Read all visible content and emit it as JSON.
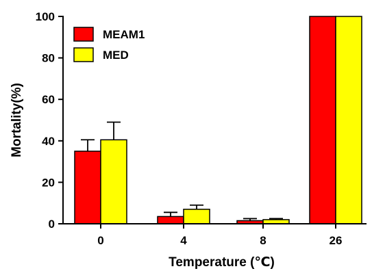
{
  "chart_data": {
    "type": "bar",
    "title": "",
    "xlabel": "Temperature (℃)",
    "ylabel": "Mortality(%)",
    "ylim": [
      0,
      100
    ],
    "yticks": [
      "0",
      "20",
      "40",
      "60",
      "80",
      "100"
    ],
    "categories": [
      "0",
      "4",
      "8",
      "26"
    ],
    "series": [
      {
        "name": "MEAM1",
        "color": "#ff0000",
        "values": [
          35,
          3.5,
          1.5,
          100
        ],
        "errors": [
          5.5,
          2.0,
          1.0,
          0
        ]
      },
      {
        "name": "MED",
        "color": "#ffff00",
        "values": [
          40.5,
          7,
          2,
          100
        ],
        "errors": [
          8.5,
          2.0,
          0.5,
          0
        ]
      }
    ],
    "legend_position": "top-left",
    "grid": false,
    "error_bars": true
  }
}
